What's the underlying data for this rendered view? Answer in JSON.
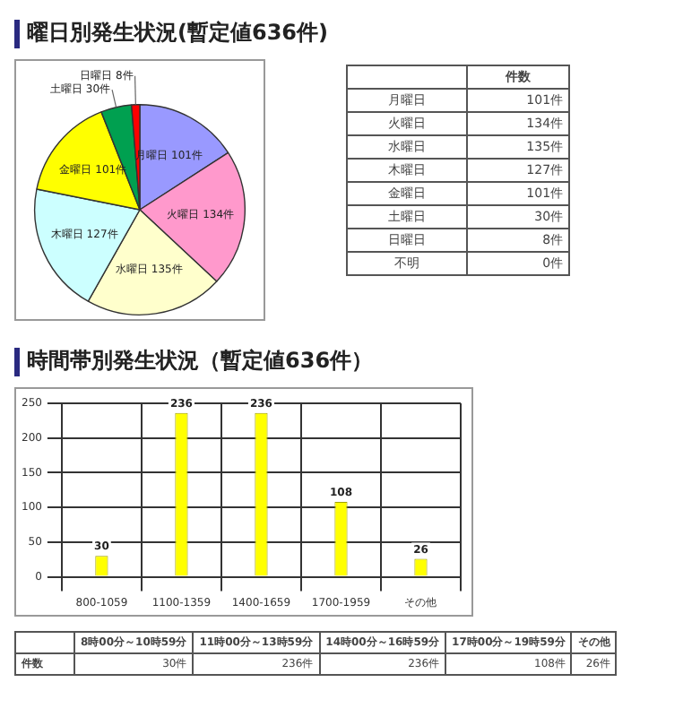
{
  "chart_data": [
    {
      "type": "pie",
      "title": "曜日別発生状況(暫定値636件)",
      "categories": [
        "月曜日",
        "火曜日",
        "水曜日",
        "木曜日",
        "金曜日",
        "土曜日",
        "日曜日"
      ],
      "values": [
        101,
        134,
        135,
        127,
        101,
        30,
        8
      ],
      "value_labels": [
        "101件",
        "134件",
        "135件",
        "127件",
        "101件",
        "30件",
        "8件"
      ],
      "colors": [
        "#9999ff",
        "#ff99cc",
        "#ffffcc",
        "#ccffff",
        "#ffff00",
        "#00a050",
        "#ff0000"
      ]
    },
    {
      "type": "other",
      "annotations": [
        "件数",
        "月曜日",
        "101件",
        "火曜日",
        "134件",
        "水曜日",
        "135件",
        "木曜日",
        "127件",
        "金曜日",
        "101件",
        "土曜日",
        "30件",
        "日曜日",
        "8件",
        "不明",
        "0件"
      ]
    },
    {
      "type": "bar",
      "title": "時間帯別発生状況（暫定値636件）",
      "categories": [
        "800-1059",
        "1100-1359",
        "1400-1659",
        "1700-1959",
        "その他"
      ],
      "values": [
        30,
        236,
        236,
        108,
        26
      ],
      "color": "#ffff00",
      "ylim": [
        0,
        250
      ],
      "yticks": [
        0,
        50,
        100,
        150,
        200,
        250
      ],
      "grid": true,
      "data_labels": true
    },
    {
      "type": "other",
      "annotations": [
        "8時00分～10時59分",
        "11時00分～13時59分",
        "14時00分～16時59分",
        "17時00分～19時59分",
        "その他",
        "件数",
        "30件",
        "236件",
        "236件",
        "108件",
        "26件"
      ]
    }
  ]
}
